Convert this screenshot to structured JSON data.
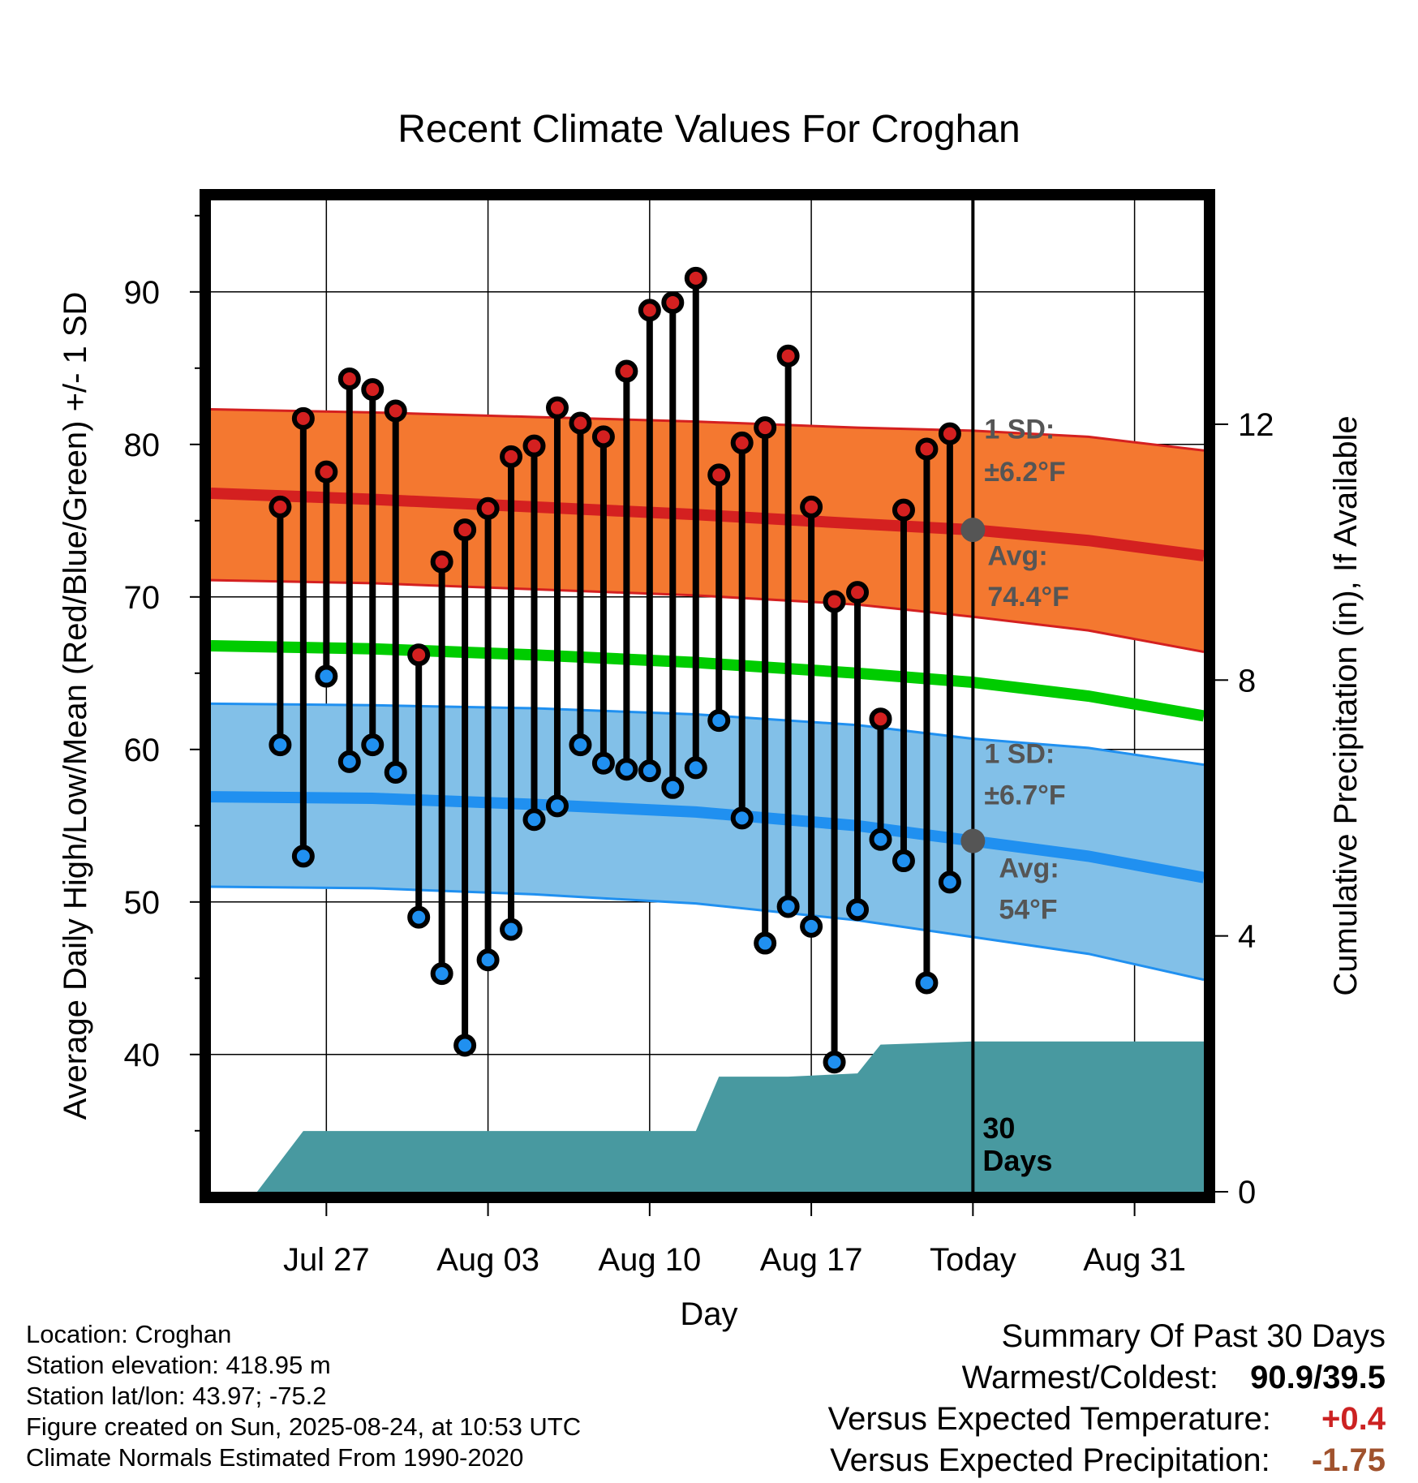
{
  "chart_data": {
    "type": "line",
    "title": "Recent Climate Values For Croghan",
    "xlabel": "Day",
    "ylabel": "Average Daily High/Low/Mean (Red/Blue/Green) +/- 1 SD",
    "y2label": "Cumulative Precipitation (in), If Available",
    "x_start": "2025-07-22",
    "x_end": "2025-09-03",
    "x_ticks": [
      {
        "date": "2025-07-27",
        "label": "Jul 27"
      },
      {
        "date": "2025-08-03",
        "label": "Aug 03"
      },
      {
        "date": "2025-08-10",
        "label": "Aug 10"
      },
      {
        "date": "2025-08-17",
        "label": "Aug 17"
      },
      {
        "date": "2025-08-24",
        "label": "Today"
      },
      {
        "date": "2025-08-31",
        "label": "Aug 31"
      }
    ],
    "ylim": [
      31,
      96
    ],
    "y_ticks": [
      40,
      50,
      60,
      70,
      80,
      90
    ],
    "y2lim": [
      0,
      15.5
    ],
    "y2_ticks": [
      0,
      4,
      8,
      12
    ],
    "grid": true,
    "today": "2025-08-24",
    "colors": {
      "high_point": "#d42020",
      "low_point": "#2090f0",
      "high_band": "#f47830",
      "high_band_edge": "#d42020",
      "low_band": "#82c0e8",
      "low_band_edge": "#2090f0",
      "normal_high": "#d42020",
      "normal_low": "#2090f0",
      "normal_mean": "#00cc00",
      "precip": "#4899a0",
      "annotation": "#555555",
      "positive_anomaly": "#cc2222",
      "negative_anomaly": "#a0522d"
    },
    "series": [
      {
        "name": "High",
        "dates": [
          "2025-07-25",
          "2025-07-26",
          "2025-07-27",
          "2025-07-28",
          "2025-07-29",
          "2025-07-30",
          "2025-07-31",
          "2025-08-01",
          "2025-08-02",
          "2025-08-03",
          "2025-08-04",
          "2025-08-05",
          "2025-08-06",
          "2025-08-07",
          "2025-08-08",
          "2025-08-09",
          "2025-08-10",
          "2025-08-11",
          "2025-08-12",
          "2025-08-13",
          "2025-08-14",
          "2025-08-15",
          "2025-08-16",
          "2025-08-17",
          "2025-08-18",
          "2025-08-19",
          "2025-08-20",
          "2025-08-21",
          "2025-08-22",
          "2025-08-23"
        ],
        "values": [
          75.9,
          81.7,
          78.2,
          84.3,
          83.6,
          82.2,
          66.2,
          72.3,
          74.4,
          75.8,
          79.2,
          79.9,
          82.4,
          81.4,
          80.5,
          84.8,
          88.8,
          89.3,
          90.9,
          78.0,
          80.1,
          81.1,
          85.8,
          75.9,
          69.7,
          70.3,
          62.0,
          75.7,
          79.7,
          80.7
        ]
      },
      {
        "name": "Low",
        "dates": [
          "2025-07-25",
          "2025-07-26",
          "2025-07-27",
          "2025-07-28",
          "2025-07-29",
          "2025-07-30",
          "2025-07-31",
          "2025-08-01",
          "2025-08-02",
          "2025-08-03",
          "2025-08-04",
          "2025-08-05",
          "2025-08-06",
          "2025-08-07",
          "2025-08-08",
          "2025-08-09",
          "2025-08-10",
          "2025-08-11",
          "2025-08-12",
          "2025-08-13",
          "2025-08-14",
          "2025-08-15",
          "2025-08-16",
          "2025-08-17",
          "2025-08-18",
          "2025-08-19",
          "2025-08-20",
          "2025-08-21",
          "2025-08-22",
          "2025-08-23"
        ],
        "values": [
          60.3,
          53.0,
          64.8,
          59.2,
          60.3,
          58.5,
          49.0,
          45.3,
          40.6,
          46.2,
          48.2,
          55.4,
          56.3,
          60.3,
          59.1,
          58.7,
          58.6,
          57.5,
          58.8,
          61.9,
          55.5,
          47.3,
          49.7,
          48.4,
          39.5,
          49.5,
          54.1,
          52.7,
          44.7,
          51.3
        ]
      }
    ],
    "normals": {
      "dates": [
        "2025-07-22",
        "2025-07-29",
        "2025-08-05",
        "2025-08-12",
        "2025-08-19",
        "2025-08-24",
        "2025-08-29",
        "2025-09-03"
      ],
      "high_mean": [
        76.8,
        76.4,
        75.9,
        75.4,
        74.8,
        74.4,
        73.7,
        72.7
      ],
      "high_upper": [
        82.3,
        82.1,
        81.8,
        81.5,
        81.1,
        80.9,
        80.5,
        79.6
      ],
      "high_lower": [
        71.1,
        70.9,
        70.5,
        70.1,
        69.5,
        68.7,
        67.8,
        66.4
      ],
      "mean": [
        66.8,
        66.6,
        66.2,
        65.7,
        65.0,
        64.4,
        63.5,
        62.2
      ],
      "low_mean": [
        56.9,
        56.8,
        56.4,
        55.9,
        55.0,
        54.0,
        53.0,
        51.6
      ],
      "low_upper": [
        63.0,
        62.9,
        62.7,
        62.3,
        61.6,
        60.7,
        60.1,
        59.0
      ],
      "low_lower": [
        51.0,
        50.9,
        50.5,
        49.9,
        48.8,
        47.7,
        46.6,
        44.9
      ]
    },
    "precipitation": {
      "dates": [
        "2025-07-22",
        "2025-07-24",
        "2025-07-26",
        "2025-08-11",
        "2025-08-12",
        "2025-08-13",
        "2025-08-16",
        "2025-08-19",
        "2025-08-20",
        "2025-08-24",
        "2025-09-03"
      ],
      "values": [
        0,
        0,
        0.95,
        0.95,
        0.95,
        1.8,
        1.8,
        1.85,
        2.3,
        2.35,
        2.35
      ]
    },
    "annotations": {
      "high_sd": "1 SD:",
      "high_sd_value": "±6.2°F",
      "high_avg": "Avg:",
      "high_avg_value": "74.4°F",
      "low_sd": "1 SD:",
      "low_sd_value": "±6.7°F",
      "low_avg": "Avg:",
      "low_avg_value": "54°F",
      "days_count": "30",
      "days_word": "Days"
    }
  },
  "metadata_text": {
    "location": "Location: Croghan",
    "elevation": "Station elevation: 418.95 m",
    "latlon": "Station lat/lon: 43.97; -75.2",
    "created": "Figure created on Sun, 2025-08-24, at 10:53 UTC",
    "normals": "Climate Normals Estimated From 1990-2020"
  },
  "summary": {
    "title": "Summary Of Past 30 Days",
    "warm_cold_label": "Warmest/Coldest:",
    "warm_cold_value": "90.9/39.5",
    "temp_label": "Versus Expected Temperature:",
    "temp_value": "+0.4",
    "precip_label": "Versus Expected Precipitation:",
    "precip_value": "-1.75"
  }
}
